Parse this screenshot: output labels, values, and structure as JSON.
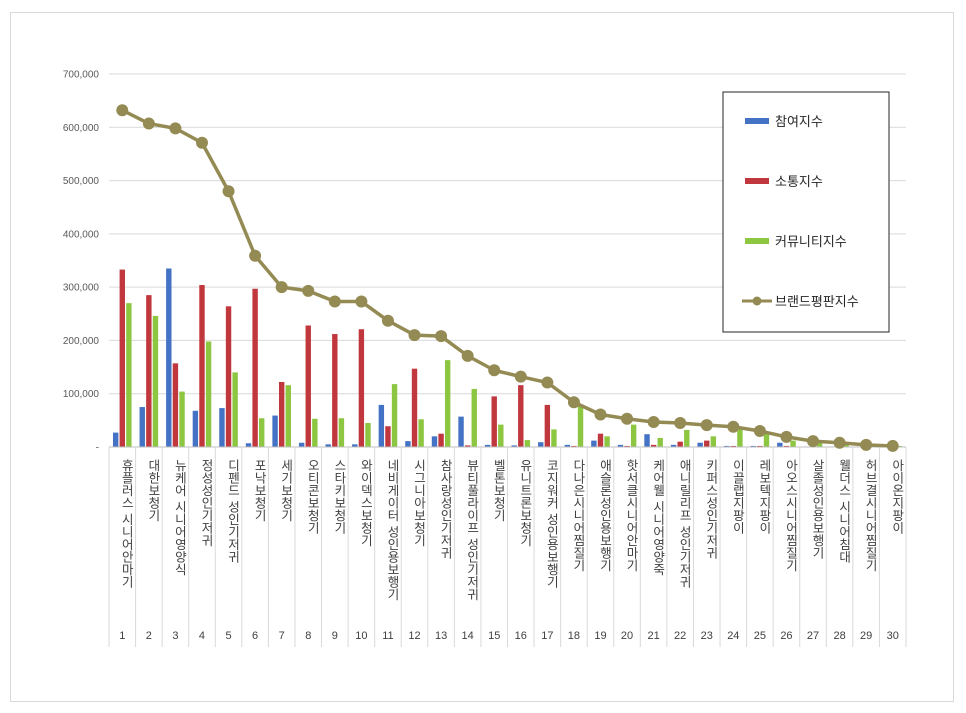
{
  "chart_data": {
    "type": "bar",
    "ylim": [
      0,
      700000
    ],
    "yticks": [
      "-",
      "100,000",
      "200,000",
      "300,000",
      "400,000",
      "500,000",
      "600,000",
      "700,000"
    ],
    "grid": true,
    "legend_position": "right",
    "categories": [
      {
        "rank": "1",
        "label": "휴플러스 시니어안마기"
      },
      {
        "rank": "2",
        "label": "대한보청기"
      },
      {
        "rank": "3",
        "label": "뉴케어 시니어영양식"
      },
      {
        "rank": "4",
        "label": "정성성인기저귀"
      },
      {
        "rank": "5",
        "label": "디펜드 성인기저귀"
      },
      {
        "rank": "6",
        "label": "포낙보청기"
      },
      {
        "rank": "7",
        "label": "세기보청기"
      },
      {
        "rank": "8",
        "label": "오티콘보청기"
      },
      {
        "rank": "9",
        "label": "스타키보청기"
      },
      {
        "rank": "10",
        "label": "와이덱스보청기"
      },
      {
        "rank": "11",
        "label": "네비게이터 성인용보행기"
      },
      {
        "rank": "12",
        "label": "시그니아보청기"
      },
      {
        "rank": "13",
        "label": "참사랑성인기저귀"
      },
      {
        "rank": "14",
        "label": "뷰티풀라이프 성인기저귀"
      },
      {
        "rank": "15",
        "label": "벨톤보청기"
      },
      {
        "rank": "16",
        "label": "유니트론보청기"
      },
      {
        "rank": "17",
        "label": "코지워커 성인용보행기"
      },
      {
        "rank": "18",
        "label": "다나은시니어찜질기"
      },
      {
        "rank": "19",
        "label": "애슬론성인용보행기"
      },
      {
        "rank": "20",
        "label": "핫서클시니어안마기"
      },
      {
        "rank": "21",
        "label": "케어웰 시니어영양죽"
      },
      {
        "rank": "22",
        "label": "애니릴리프 성인기저귀"
      },
      {
        "rank": "23",
        "label": "키퍼스성인기저귀"
      },
      {
        "rank": "24",
        "label": "이끌랩지팡이"
      },
      {
        "rank": "25",
        "label": "레보텍지팡이"
      },
      {
        "rank": "26",
        "label": "아오스시니어찜질기"
      },
      {
        "rank": "27",
        "label": "살졸성인용보행기"
      },
      {
        "rank": "28",
        "label": "웰더스 시니어침대"
      },
      {
        "rank": "29",
        "label": "허브결시니어찜질기"
      },
      {
        "rank": "30",
        "label": "아이온지팡이"
      }
    ],
    "series": [
      {
        "name": "참여지수",
        "kind": "bar",
        "color": "#4472c4",
        "values": [
          27000,
          75000,
          335000,
          68000,
          73000,
          7000,
          59000,
          8000,
          5000,
          5000,
          79000,
          11000,
          20000,
          57000,
          4000,
          3000,
          9000,
          4000,
          12000,
          4000,
          24000,
          4000,
          8000,
          2000,
          2000,
          8000,
          1000,
          1000,
          1000,
          1000
        ]
      },
      {
        "name": "소통지수",
        "kind": "bar",
        "color": "#c0383e",
        "values": [
          333000,
          285000,
          157000,
          304000,
          264000,
          297000,
          122000,
          228000,
          212000,
          221000,
          39000,
          147000,
          25000,
          3000,
          95000,
          116000,
          79000,
          2000,
          25000,
          2000,
          4000,
          10000,
          12000,
          2000,
          2000,
          2000,
          1000,
          1000,
          1000,
          1000
        ]
      },
      {
        "name": "커뮤니티지수",
        "kind": "bar",
        "color": "#8dc641",
        "values": [
          270000,
          246000,
          104000,
          198000,
          140000,
          54000,
          116000,
          53000,
          54000,
          45000,
          118000,
          52000,
          163000,
          109000,
          42000,
          13000,
          33000,
          79000,
          20000,
          42000,
          17000,
          32000,
          20000,
          38000,
          27000,
          12000,
          9000,
          7000,
          3000,
          2000
        ]
      },
      {
        "name": "브랜드평판지수",
        "kind": "line",
        "color": "#948a54",
        "values": [
          632000,
          607000,
          598000,
          571000,
          480000,
          359000,
          300000,
          293000,
          273000,
          273000,
          237000,
          210000,
          208000,
          171000,
          144000,
          132000,
          121000,
          84000,
          61000,
          53000,
          47000,
          45000,
          41000,
          38000,
          30000,
          19000,
          11000,
          8000,
          4000,
          2000
        ]
      }
    ]
  }
}
